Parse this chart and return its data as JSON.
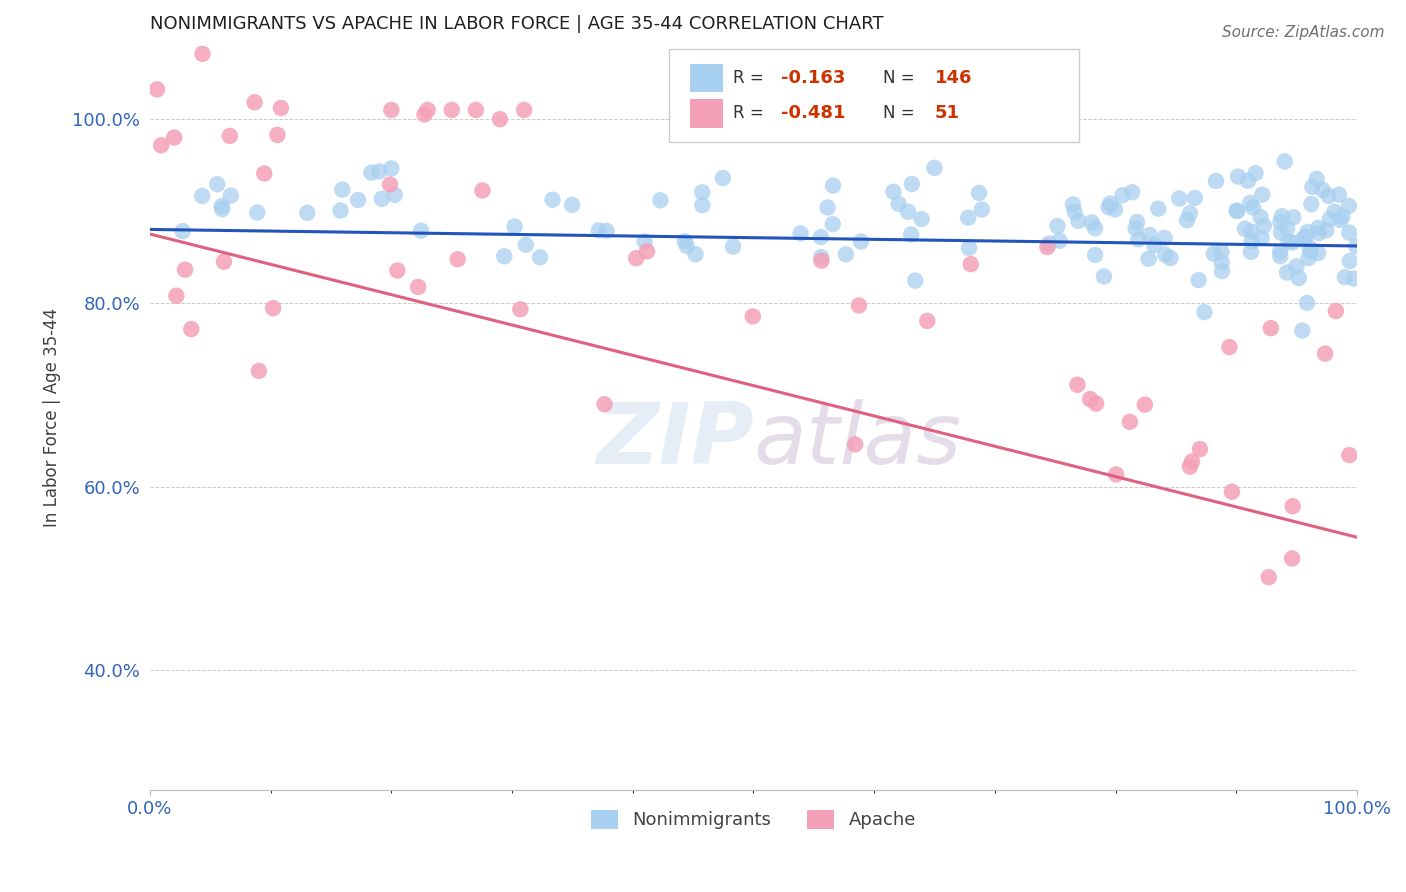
{
  "title": "NONIMMIGRANTS VS APACHE IN LABOR FORCE | AGE 35-44 CORRELATION CHART",
  "source_text": "Source: ZipAtlas.com",
  "ylabel": "In Labor Force | Age 35-44",
  "xlim": [
    0.0,
    1.0
  ],
  "ylim": [
    0.27,
    1.08
  ],
  "ytick_labels": [
    "40.0%",
    "60.0%",
    "80.0%",
    "100.0%"
  ],
  "ytick_vals": [
    0.4,
    0.6,
    0.8,
    1.0
  ],
  "xtick_labels": [
    "0.0%",
    "100.0%"
  ],
  "xtick_vals": [
    0.0,
    1.0
  ],
  "blue_color": "#A8D0F0",
  "pink_color": "#F4A0B8",
  "blue_line_color": "#2255BB",
  "pink_line_color": "#E06080",
  "background_color": "#FFFFFF",
  "nonimm_r": -0.163,
  "nonimm_n": 146,
  "apache_r": -0.481,
  "apache_n": 51,
  "nonimm_line_y0": 0.88,
  "nonimm_line_y1": 0.862,
  "apache_line_y0": 0.875,
  "apache_line_y1": 0.545
}
